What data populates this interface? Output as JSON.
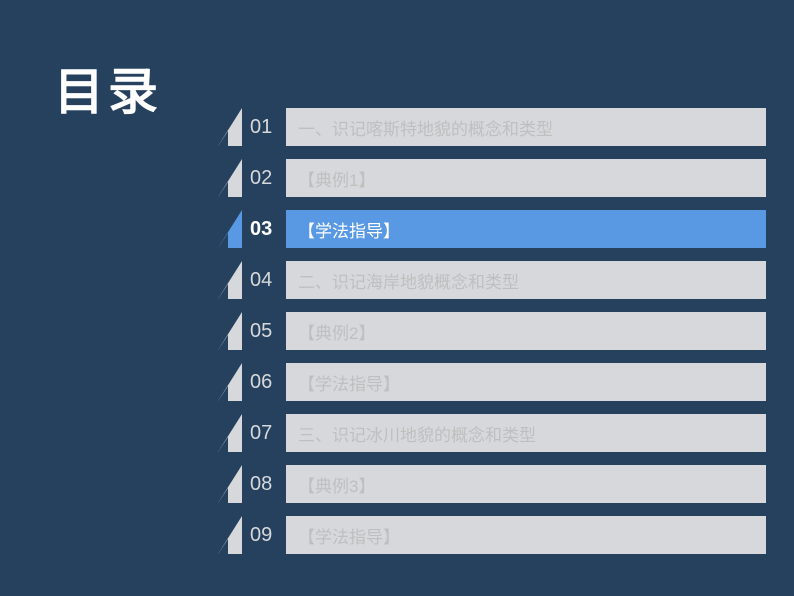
{
  "title": "目录",
  "colors": {
    "background": "#26415e",
    "item_bg": "#d6d8db",
    "item_text": "#bfbfbf",
    "active_bg": "#5999e4",
    "active_text": "#ffffff",
    "number": "#d6d8db",
    "number_active": "#ffffff",
    "title": "#ffffff"
  },
  "toc": {
    "items": [
      {
        "number": "01",
        "label": "一、识记喀斯特地貌的概念和类型",
        "active": false
      },
      {
        "number": "02",
        "label": "【典例1】",
        "active": false
      },
      {
        "number": "03",
        "label": "【学法指导】",
        "active": true
      },
      {
        "number": "04",
        "label": "二、识记海岸地貌概念和类型",
        "active": false
      },
      {
        "number": "05",
        "label": "【典例2】",
        "active": false
      },
      {
        "number": "06",
        "label": "【学法指导】",
        "active": false
      },
      {
        "number": "07",
        "label": "三、识记冰川地貌的概念和类型",
        "active": false
      },
      {
        "number": "08",
        "label": "【典例3】",
        "active": false
      },
      {
        "number": "09",
        "label": "【学法指导】",
        "active": false
      }
    ]
  }
}
